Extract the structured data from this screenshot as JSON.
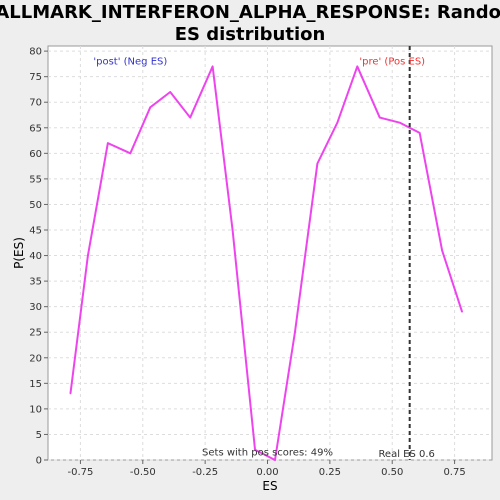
{
  "chart_data": {
    "type": "line",
    "title_lines": [
      "HALLMARK_INTERFERON_ALPHA_RESPONSE: Random",
      "ES distribution"
    ],
    "xlabel": "ES",
    "ylabel": "P(ES)",
    "xlim": [
      -0.88,
      0.9
    ],
    "ylim": [
      0,
      81
    ],
    "xticks": [
      -0.75,
      -0.5,
      -0.25,
      0.0,
      0.25,
      0.5,
      0.75
    ],
    "xtick_labels": [
      "-0.75",
      "-0.50",
      "-0.25",
      "0.00",
      "0.25",
      "0.50",
      "0.75"
    ],
    "yticks": [
      0,
      5,
      10,
      15,
      20,
      25,
      30,
      35,
      40,
      45,
      50,
      55,
      60,
      65,
      70,
      75,
      80
    ],
    "ytick_labels": [
      "0",
      "5",
      "10",
      "15",
      "20",
      "25",
      "30",
      "35",
      "40",
      "45",
      "50",
      "55",
      "60",
      "65",
      "70",
      "75",
      "80"
    ],
    "grid": true,
    "series": [
      {
        "color": "#ee44ee",
        "x": [
          -0.79,
          -0.72,
          -0.64,
          -0.55,
          -0.47,
          -0.39,
          -0.31,
          -0.22,
          -0.14,
          -0.05,
          0.03,
          0.11,
          0.2,
          0.28,
          0.36,
          0.45,
          0.53,
          0.61,
          0.7,
          0.78
        ],
        "y": [
          13,
          40,
          62,
          60,
          69,
          72,
          67,
          77,
          45,
          2,
          0,
          25,
          58,
          66,
          77,
          67,
          66,
          64,
          41,
          29
        ]
      }
    ],
    "reference_line": {
      "x": 0.57,
      "label": "Real ES 0.6",
      "color": "#333333"
    },
    "annotations": [
      {
        "text": "'post' (Neg ES)",
        "x": -0.55,
        "y": 78,
        "color": "#3333cc"
      },
      {
        "text": "'pre' (Pos ES)",
        "x": 0.5,
        "y": 78,
        "color": "#ee3333"
      },
      {
        "text": "Sets with pos scores: 49%",
        "x": 0.0,
        "y": 1.5,
        "color": "#333333"
      }
    ]
  }
}
